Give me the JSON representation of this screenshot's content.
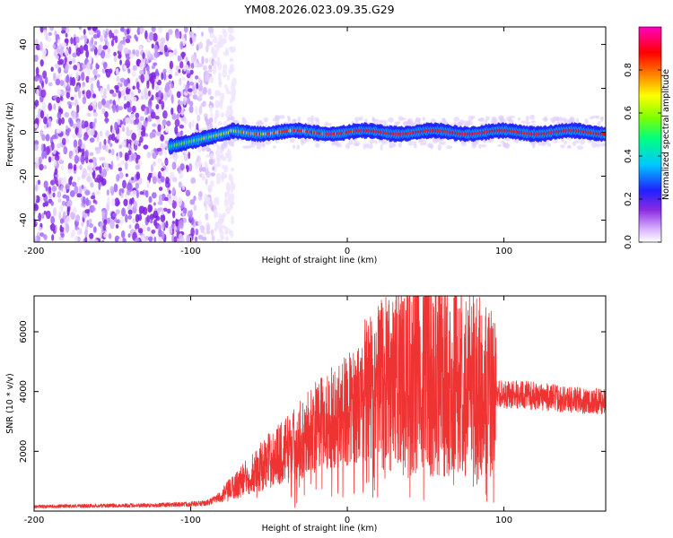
{
  "title": "YM08.2026.023.09.35.G29",
  "colors": {
    "snr_line": "#ef3232",
    "axis": "#000000"
  },
  "chart_data": [
    {
      "type": "heatmap",
      "xlabel": "Height of straight line (km)",
      "ylabel": "Frequency (Hz)",
      "xlim": [
        -200,
        165
      ],
      "ylim": [
        -50,
        48
      ],
      "x_ticks": [
        -200,
        -100,
        0,
        100
      ],
      "x_tick_labels": [
        "-200",
        "-100",
        "0",
        "100"
      ],
      "y_ticks": [
        -40,
        -20,
        0,
        20,
        40
      ],
      "y_tick_labels": [
        "-40",
        "-20",
        "0",
        "20",
        "40"
      ],
      "noise_region_x": [
        -200,
        -80
      ],
      "signal_start_x": -113,
      "signal_frequency_hz": 0,
      "colorbar": {
        "label": "Normalized spectral amplitude",
        "range": [
          0,
          1
        ],
        "ticks": [
          0.0,
          0.2,
          0.4,
          0.6,
          0.8
        ],
        "tick_labels": [
          "0.0",
          "0.2",
          "0.4",
          "0.6",
          "0.8"
        ],
        "colormap": [
          "#ffffff",
          "#d9b3ff",
          "#8a2be2",
          "#2020ff",
          "#00c8ff",
          "#00ff80",
          "#80ff00",
          "#ffff00",
          "#ff8000",
          "#ff0000",
          "#ff00c0"
        ]
      }
    },
    {
      "type": "line",
      "xlabel": "Height of straight line (km)",
      "ylabel": "SNR (10 * v/v)",
      "xlim": [
        -200,
        165
      ],
      "ylim": [
        0,
        7200
      ],
      "x_ticks": [
        -200,
        -100,
        0,
        100
      ],
      "x_tick_labels": [
        "-200",
        "-100",
        "0",
        "100"
      ],
      "y_ticks": [
        2000,
        4000,
        6000
      ],
      "y_tick_labels": [
        "2000",
        "4000",
        "6000"
      ],
      "series": [
        {
          "name": "SNR",
          "x": [
            -200,
            -160,
            -120,
            -90,
            -80,
            -70,
            -60,
            -50,
            -40,
            -30,
            -20,
            -10,
            0,
            10,
            20,
            30,
            40,
            50,
            60,
            70,
            80,
            90,
            100,
            110,
            120,
            130,
            140,
            150,
            165
          ],
          "y": [
            150,
            180,
            200,
            260,
            500,
            900,
            1300,
            1700,
            2000,
            2400,
            2800,
            3100,
            3400,
            3700,
            4000,
            4200,
            4400,
            4500,
            4500,
            4400,
            4200,
            4000,
            3900,
            3900,
            3850,
            3800,
            3750,
            3700,
            3650
          ]
        }
      ]
    }
  ]
}
